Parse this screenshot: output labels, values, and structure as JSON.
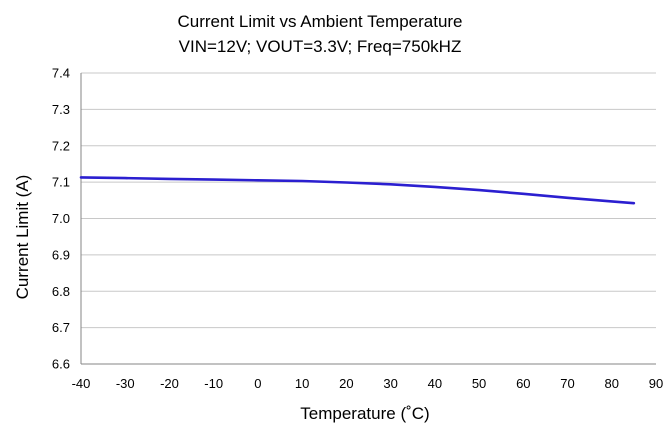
{
  "chart_data": {
    "type": "line",
    "title": "Current Limit vs Ambient Temperature",
    "subtitle": "VIN=12V; VOUT=3.3V; Freq=750kHZ",
    "xlabel": "Temperature (˚C)",
    "ylabel": "Current Limit (A)",
    "xlim": [
      -40,
      90
    ],
    "ylim": [
      6.6,
      7.4
    ],
    "x_ticks": [
      "-40",
      "-30",
      "-20",
      "-10",
      "0",
      "10",
      "20",
      "30",
      "40",
      "50",
      "60",
      "70",
      "80",
      "90"
    ],
    "y_ticks": [
      "6.6",
      "6.7",
      "6.8",
      "6.9",
      "7.0",
      "7.1",
      "7.2",
      "7.3",
      "7.4"
    ],
    "grid": "horizontal",
    "series": [
      {
        "color": "#2b1fd0",
        "x": [
          -40,
          -30,
          -20,
          -10,
          0,
          10,
          20,
          30,
          40,
          50,
          60,
          70,
          80,
          85
        ],
        "y": [
          7.113,
          7.111,
          7.109,
          7.107,
          7.105,
          7.103,
          7.099,
          7.094,
          7.087,
          7.078,
          7.068,
          7.057,
          7.047,
          7.042
        ]
      }
    ]
  }
}
